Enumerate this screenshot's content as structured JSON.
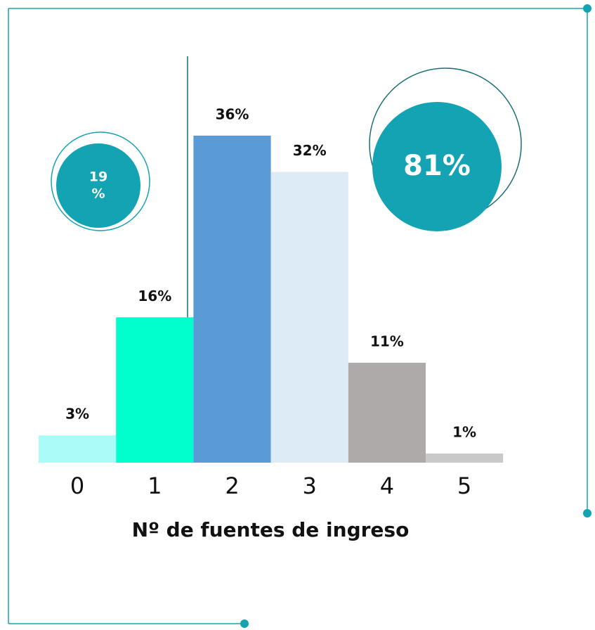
{
  "chart_data": {
    "type": "bar",
    "categories": [
      "0",
      "1",
      "2",
      "3",
      "4",
      "5"
    ],
    "values": [
      3,
      16,
      36,
      32,
      11,
      1
    ],
    "value_labels": [
      "3%",
      "16%",
      "36%",
      "32%",
      "11%",
      "1%"
    ],
    "colors": [
      "#aafcf8",
      "#00ffcc",
      "#5b9bd5",
      "#ddebf7",
      "#aeaaaa",
      "#c9c9c9"
    ],
    "xlabel": "Nº de fuentes de ingreso",
    "ylim": [
      0,
      40
    ],
    "annotations": [
      {
        "lines": [
          "19",
          "%"
        ]
      },
      {
        "lines": [
          "81%"
        ]
      }
    ]
  }
}
